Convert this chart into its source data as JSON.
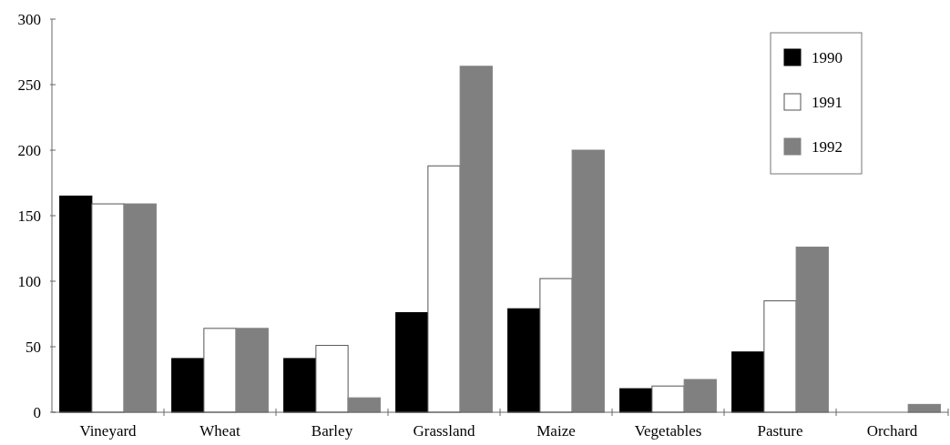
{
  "chart_data": {
    "type": "bar",
    "categories": [
      "Vineyard",
      "Wheat",
      "Barley",
      "Grassland",
      "Maize",
      "Vegetables",
      "Pasture",
      "Orchard"
    ],
    "series": [
      {
        "name": "1990",
        "color": "#000000",
        "values": [
          165,
          41,
          41,
          76,
          79,
          18,
          46,
          0
        ]
      },
      {
        "name": "1991",
        "color": "#ffffff",
        "values": [
          159,
          64,
          51,
          188,
          102,
          20,
          85,
          0
        ]
      },
      {
        "name": "1992",
        "color": "#808080",
        "values": [
          159,
          64,
          11,
          264,
          200,
          25,
          126,
          6
        ]
      }
    ],
    "ylim": [
      0,
      300
    ],
    "yticks": [
      0,
      50,
      100,
      150,
      200,
      250,
      300
    ],
    "grid": false,
    "legend": "top right"
  }
}
